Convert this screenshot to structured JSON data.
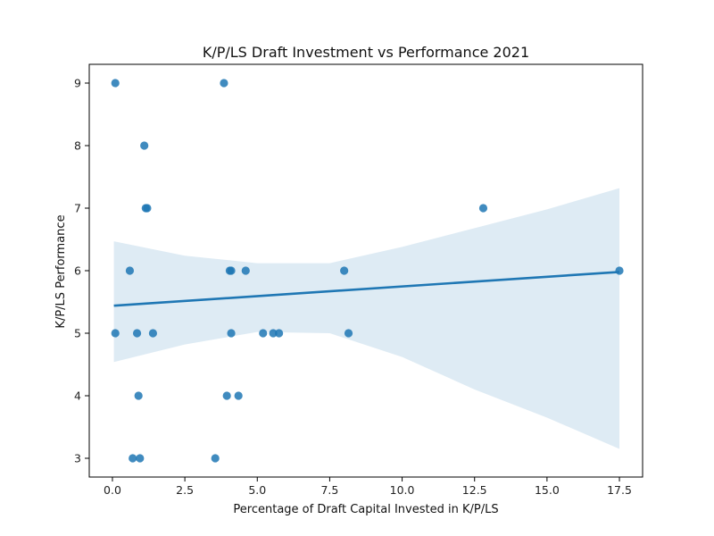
{
  "chart_data": {
    "type": "scatter",
    "title": "K/P/LS Draft Investment vs Performance 2021",
    "xlabel": "Percentage of Draft Capital Invested in K/P/LS",
    "ylabel": "K/P/LS Performance",
    "xlim": [
      -0.8,
      18.3
    ],
    "ylim": [
      2.7,
      9.3
    ],
    "xticks": [
      0.0,
      2.5,
      5.0,
      7.5,
      10.0,
      12.5,
      15.0,
      17.5
    ],
    "xtick_labels": [
      "0.0",
      "2.5",
      "5.0",
      "7.5",
      "10.0",
      "12.5",
      "15.0",
      "17.5"
    ],
    "yticks": [
      3,
      4,
      5,
      6,
      7,
      8,
      9
    ],
    "ytick_labels": [
      "3",
      "4",
      "5",
      "6",
      "7",
      "8",
      "9"
    ],
    "grid": false,
    "legend": "none",
    "points": [
      {
        "x": 0.1,
        "y": 9
      },
      {
        "x": 3.85,
        "y": 9
      },
      {
        "x": 1.1,
        "y": 8
      },
      {
        "x": 1.15,
        "y": 7
      },
      {
        "x": 1.2,
        "y": 7
      },
      {
        "x": 12.8,
        "y": 7
      },
      {
        "x": 0.6,
        "y": 6
      },
      {
        "x": 4.05,
        "y": 6
      },
      {
        "x": 4.1,
        "y": 6
      },
      {
        "x": 4.6,
        "y": 6
      },
      {
        "x": 8.0,
        "y": 6
      },
      {
        "x": 17.5,
        "y": 6
      },
      {
        "x": 0.1,
        "y": 5
      },
      {
        "x": 0.85,
        "y": 5
      },
      {
        "x": 1.4,
        "y": 5
      },
      {
        "x": 4.1,
        "y": 5
      },
      {
        "x": 5.2,
        "y": 5
      },
      {
        "x": 5.55,
        "y": 5
      },
      {
        "x": 5.75,
        "y": 5
      },
      {
        "x": 8.15,
        "y": 5
      },
      {
        "x": 0.9,
        "y": 4
      },
      {
        "x": 3.95,
        "y": 4
      },
      {
        "x": 4.35,
        "y": 4
      },
      {
        "x": 0.7,
        "y": 3
      },
      {
        "x": 0.95,
        "y": 3
      },
      {
        "x": 3.55,
        "y": 3
      }
    ],
    "regression_line": {
      "x": [
        0.05,
        17.5
      ],
      "y": [
        5.44,
        5.98
      ]
    },
    "confidence_band": {
      "x": [
        0.05,
        2.5,
        5.0,
        7.5,
        10.0,
        12.5,
        15.0,
        17.5
      ],
      "lower": [
        4.54,
        4.82,
        5.02,
        5.0,
        4.62,
        4.1,
        3.65,
        3.15
      ],
      "upper": [
        6.47,
        6.24,
        6.12,
        6.12,
        6.38,
        6.68,
        6.98,
        7.32
      ]
    },
    "colors": {
      "points": "#1f77b4",
      "line": "#1f77b4",
      "band": "#1f77b4"
    }
  }
}
